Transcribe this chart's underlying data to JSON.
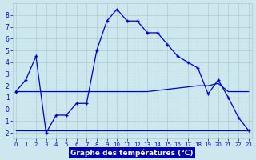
{
  "title": "Graphe des températures (°C)",
  "bg_color": "#cce8ee",
  "grid_color": "#aacccc",
  "line_color": "#0000cc",
  "label_bg": "#0000aa",
  "label_fg": "#ffffff",
  "hours": [
    0,
    1,
    2,
    3,
    4,
    5,
    6,
    7,
    8,
    9,
    10,
    11,
    12,
    13,
    14,
    15,
    16,
    17,
    18,
    19,
    20,
    21,
    22,
    23
  ],
  "temp": [
    1.5,
    2.5,
    4.5,
    -2.0,
    -0.5,
    -0.5,
    0.5,
    0.5,
    5.0,
    7.5,
    8.5,
    7.5,
    7.5,
    6.5,
    6.5,
    5.5,
    4.5,
    4.0,
    3.5,
    1.3,
    2.5,
    1.0,
    -0.7,
    -1.8
  ],
  "dew": [
    1.5,
    1.5,
    1.5,
    1.5,
    1.5,
    1.5,
    1.5,
    1.5,
    1.5,
    1.5,
    1.5,
    1.5,
    1.5,
    1.5,
    1.6,
    1.7,
    1.8,
    1.9,
    2.0,
    2.0,
    2.2,
    1.5,
    1.5,
    1.5
  ],
  "humid": [
    -1.8,
    -1.8,
    -1.8,
    -1.8,
    -1.8,
    -1.8,
    -1.8,
    -1.8,
    -1.8,
    -1.8,
    -1.8,
    -1.8,
    -1.8,
    -1.8,
    -1.8,
    -1.8,
    -1.8,
    -1.8,
    -1.8,
    -1.8,
    -1.8,
    -1.8,
    -1.8,
    -1.8
  ],
  "ylim": [
    -2.5,
    9.0
  ],
  "yticks": [
    -2,
    -1,
    0,
    1,
    2,
    3,
    4,
    5,
    6,
    7,
    8
  ]
}
